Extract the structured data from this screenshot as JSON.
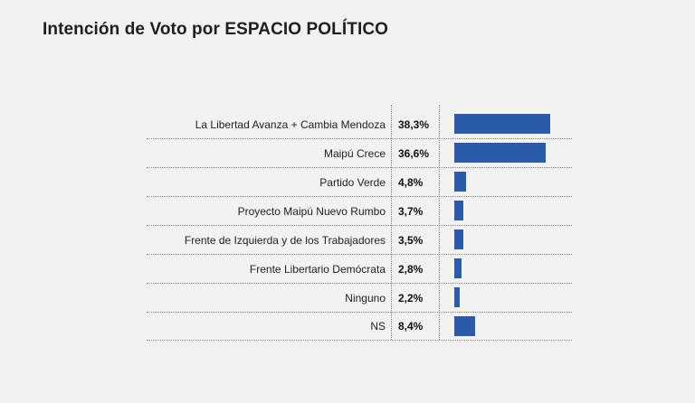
{
  "title": "Intención de Voto por ESPACIO POLÍTICO",
  "colors": {
    "bar": "#2b5ca8",
    "background": "#f2f2f2"
  },
  "chart_data": {
    "type": "bar",
    "orientation": "horizontal",
    "title": "Intención de Voto por ESPACIO POLÍTICO",
    "categories": [
      "La Libertad Avanza + Cambia Mendoza",
      "Maipú Crece",
      "Partido Verde",
      "Proyecto Maipú Nuevo Rumbo",
      "Frente de Izquierda y de los Trabajadores",
      "Frente Libertario Demócrata",
      "Ninguno",
      "NS"
    ],
    "values": [
      38.3,
      36.6,
      4.8,
      3.7,
      3.5,
      2.8,
      2.2,
      8.4
    ],
    "value_labels": [
      "38,3%",
      "36,6%",
      "4,8%",
      "3,7%",
      "3,5%",
      "2,8%",
      "2,2%",
      "8,4%"
    ],
    "unit": "%",
    "xlim": [
      0,
      38.3
    ],
    "grid": false,
    "legend": "none"
  }
}
